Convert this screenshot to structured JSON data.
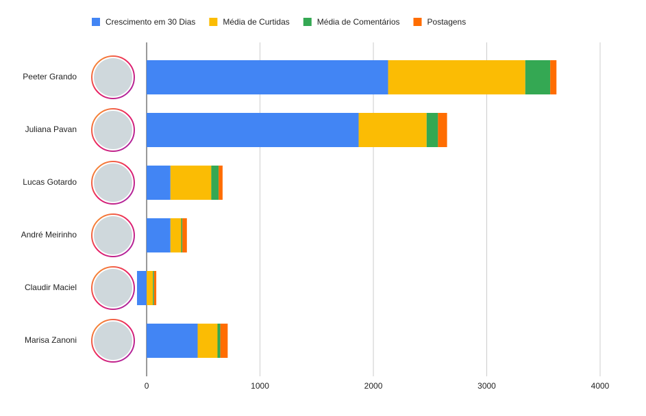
{
  "chart_data": {
    "type": "stacked-bar-horizontal",
    "categories": [
      "Peeter Grando",
      "Juliana Pavan",
      "Lucas Gotardo",
      "André Meirinho",
      "Claudir Maciel",
      "Marisa Zanoni"
    ],
    "series": [
      {
        "name": "Crescimento em 30 Dias",
        "color": "#4285f4",
        "values": [
          2130,
          1870,
          210,
          210,
          -85,
          450
        ]
      },
      {
        "name": "Média de Curtidas",
        "color": "#fbbc04",
        "values": [
          1210,
          600,
          360,
          95,
          55,
          175
        ]
      },
      {
        "name": "Média de Comentários",
        "color": "#34a853",
        "values": [
          220,
          100,
          65,
          10,
          10,
          25
        ]
      },
      {
        "name": "Postagens",
        "color": "#ff6d01",
        "values": [
          55,
          80,
          35,
          40,
          20,
          65
        ]
      }
    ],
    "xlim": [
      -100,
      4000
    ],
    "xticks": [
      0,
      1000,
      2000,
      3000,
      4000
    ],
    "grid": true,
    "legend": "top"
  }
}
